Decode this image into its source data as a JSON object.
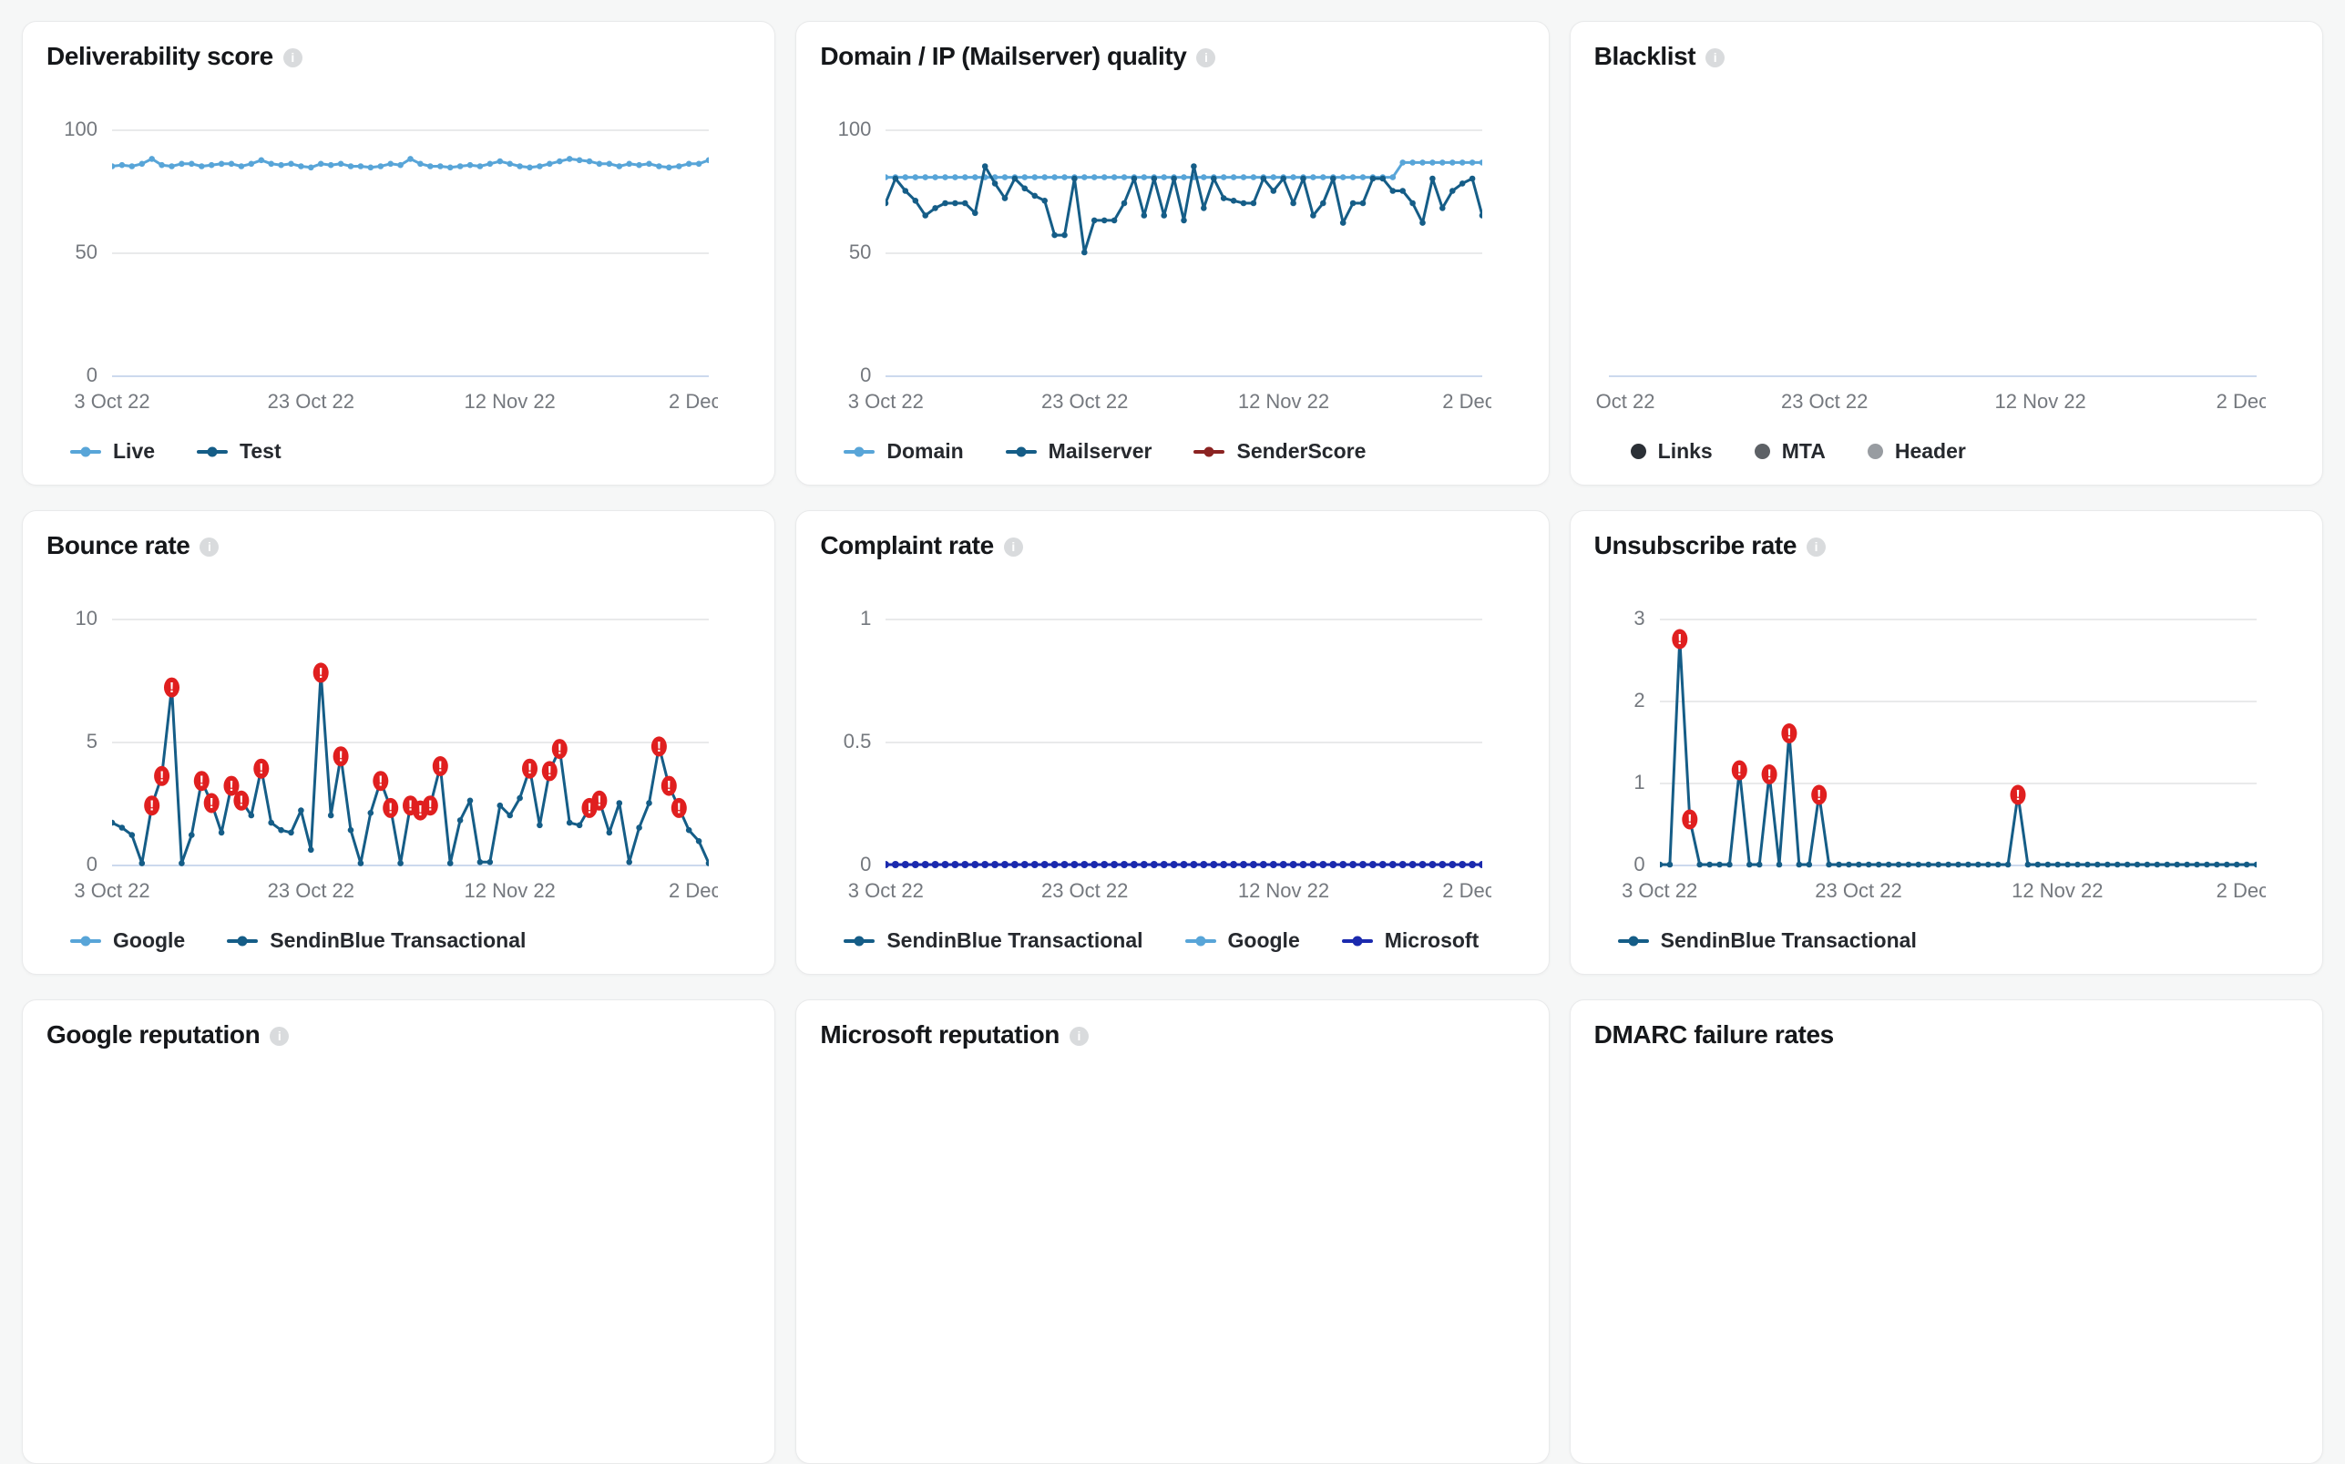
{
  "page": {
    "background": "#f6f7f7"
  },
  "palette": {
    "light_blue": "#58a5d8",
    "dark_blue": "#155d87",
    "navy": "#1b2aae",
    "maroon": "#8b2322",
    "alert_red": "#e01f1f",
    "links_black": "#2b3036",
    "mta_gray": "#5d6166",
    "header_gray": "#989ca1",
    "grid": "#e9eaeb",
    "zero_line": "#ccd9ed",
    "axis_text": "#74787e",
    "title_text": "#15171a"
  },
  "chart_data": [
    {
      "id": "deliverability-score",
      "title": "Deliverability score",
      "info_icon": true,
      "type": "line",
      "ylim": [
        0,
        100
      ],
      "yticks": [
        100,
        50,
        0
      ],
      "xticks": [
        "3 Oct 22",
        "23 Oct 22",
        "12 Nov 22",
        "2 Dec 22"
      ],
      "legend_position": "bottom",
      "series": [
        {
          "name": "Live",
          "color": "#58a5d8",
          "marker": "line-dot",
          "values": [
            85,
            85.5,
            85,
            86,
            88,
            85.5,
            85,
            86,
            86,
            85,
            85.5,
            86,
            86,
            85,
            86,
            87.5,
            86,
            85.5,
            86,
            85,
            84.5,
            86,
            85.5,
            86,
            85,
            85,
            84.5,
            85,
            86,
            85.5,
            88,
            86,
            85,
            85,
            84.5,
            85,
            85.5,
            85,
            86,
            87,
            86,
            85,
            84.5,
            85,
            86,
            87,
            88,
            87.5,
            87,
            86,
            86,
            85,
            86,
            85.5,
            86,
            85,
            84.5,
            85,
            86,
            86,
            87.5
          ],
          "alerts": []
        },
        {
          "name": "Test",
          "color": "#155d87",
          "marker": "line-dot",
          "values": [],
          "alerts": []
        }
      ]
    },
    {
      "id": "domain-ip-mailserver-quality",
      "title": "Domain / IP (Mailserver) quality",
      "info_icon": true,
      "type": "line",
      "ylim": [
        0,
        100
      ],
      "yticks": [
        100,
        50,
        0
      ],
      "xticks": [
        "3 Oct 22",
        "23 Oct 22",
        "12 Nov 22",
        "2 Dec 22"
      ],
      "legend_position": "bottom",
      "series": [
        {
          "name": "Domain",
          "color": "#58a5d8",
          "marker": "line-dot",
          "values": [
            80.5,
            80.5,
            80.5,
            80.5,
            80.5,
            80.5,
            80.5,
            80.5,
            80.5,
            80.5,
            80.5,
            80.5,
            80.5,
            80.5,
            80.5,
            80.5,
            80.5,
            80.5,
            80.5,
            80.5,
            80.5,
            80.5,
            80.5,
            80.5,
            80.5,
            80.5,
            80.5,
            80.5,
            80.5,
            80.5,
            80.5,
            80.5,
            80.5,
            80.5,
            80.5,
            80.5,
            80.5,
            80.5,
            80.5,
            80.5,
            80.5,
            80.5,
            80.5,
            80.5,
            80.5,
            80.5,
            80.5,
            80.5,
            80.5,
            80.5,
            80.5,
            80.5,
            86.5,
            86.5,
            86.5,
            86.5,
            86.5,
            86.5,
            86.5,
            86.5,
            86.5
          ],
          "alerts": []
        },
        {
          "name": "Mailserver",
          "color": "#155d87",
          "marker": "line-dot",
          "values": [
            70,
            80,
            75,
            71,
            65,
            68,
            70,
            70,
            70,
            66,
            85,
            78,
            72,
            80,
            76,
            73,
            71,
            57,
            57,
            80,
            50,
            63,
            63,
            63,
            70,
            80,
            65,
            80,
            65,
            80,
            63,
            85,
            68,
            80,
            72,
            71,
            70,
            70,
            80,
            75,
            80,
            70,
            80,
            65,
            70,
            80,
            62,
            70,
            70,
            80,
            80,
            75,
            75,
            70,
            62,
            80,
            68,
            75,
            78,
            80,
            65
          ],
          "alerts": []
        },
        {
          "name": "SenderScore",
          "color": "#8b2322",
          "marker": "line-dot",
          "values": [],
          "alerts": []
        }
      ]
    },
    {
      "id": "blacklist",
      "title": "Blacklist",
      "info_icon": true,
      "type": "line",
      "ylim": [
        0,
        1
      ],
      "yticks": [],
      "xticks": [
        "Oct 22",
        "23 Oct 22",
        "12 Nov 22",
        "2 Dec 22"
      ],
      "first_label_start": true,
      "legend_marker": "circle",
      "legend_position": "bottom",
      "series": [
        {
          "name": "Links",
          "color": "#2b3036",
          "marker": "circle",
          "values": [],
          "alerts": []
        },
        {
          "name": "MTA",
          "color": "#5d6166",
          "marker": "circle",
          "values": [],
          "alerts": []
        },
        {
          "name": "Header",
          "color": "#989ca1",
          "marker": "circle",
          "values": [],
          "alerts": []
        }
      ]
    },
    {
      "id": "bounce-rate",
      "title": "Bounce rate",
      "info_icon": true,
      "type": "line",
      "ylim": [
        0,
        10
      ],
      "yticks": [
        10,
        5,
        0
      ],
      "xticks": [
        "3 Oct 22",
        "23 Oct 22",
        "12 Nov 22",
        "2 Dec 22"
      ],
      "legend_position": "bottom",
      "series": [
        {
          "name": "Google",
          "color": "#58a5d8",
          "marker": "line-dot",
          "values": [],
          "alerts": []
        },
        {
          "name": "SendinBlue Transactional",
          "color": "#155d87",
          "marker": "line-dot",
          "values": [
            1.7,
            1.5,
            1.2,
            0.05,
            2.4,
            3.6,
            7.2,
            0.05,
            1.2,
            3.4,
            2.5,
            1.3,
            3.2,
            2.6,
            2.0,
            3.9,
            1.7,
            1.4,
            1.3,
            2.2,
            0.6,
            7.8,
            2.0,
            4.4,
            1.4,
            0.05,
            2.1,
            3.4,
            2.3,
            0.05,
            2.4,
            2.2,
            2.4,
            4.0,
            0.05,
            1.8,
            2.6,
            0.1,
            0.1,
            2.4,
            2.0,
            2.7,
            3.9,
            1.6,
            3.8,
            4.7,
            1.7,
            1.6,
            2.3,
            2.6,
            1.3,
            2.5,
            0.1,
            1.5,
            2.5,
            4.8,
            3.2,
            2.3,
            1.4,
            0.95,
            0.05
          ],
          "alerts": [
            4,
            5,
            6,
            9,
            10,
            12,
            13,
            15,
            21,
            23,
            27,
            28,
            30,
            31,
            32,
            33,
            42,
            44,
            45,
            48,
            49,
            55,
            56,
            57
          ]
        }
      ]
    },
    {
      "id": "complaint-rate",
      "title": "Complaint rate",
      "info_icon": true,
      "type": "line",
      "ylim": [
        0,
        1
      ],
      "yticks": [
        1,
        0.5,
        0
      ],
      "xticks": [
        "3 Oct 22",
        "23 Oct 22",
        "12 Nov 22",
        "2 Dec 22"
      ],
      "legend_position": "bottom",
      "series": [
        {
          "name": "SendinBlue Transactional",
          "color": "#155d87",
          "marker": "line-dot",
          "values": [],
          "alerts": []
        },
        {
          "name": "Google",
          "color": "#58a5d8",
          "marker": "line-dot",
          "values": [],
          "alerts": []
        },
        {
          "name": "Microsoft",
          "color": "#1b2aae",
          "marker": "line-dot",
          "marker_r": 4,
          "values": [
            0,
            0,
            0,
            0,
            0,
            0,
            0,
            0,
            0,
            0,
            0,
            0,
            0,
            0,
            0,
            0,
            0,
            0,
            0,
            0,
            0,
            0,
            0,
            0,
            0,
            0,
            0,
            0,
            0,
            0,
            0,
            0,
            0,
            0,
            0,
            0,
            0,
            0,
            0,
            0,
            0,
            0,
            0,
            0,
            0,
            0,
            0,
            0,
            0,
            0,
            0,
            0,
            0,
            0,
            0,
            0,
            0,
            0,
            0,
            0,
            0
          ],
          "alerts": []
        }
      ]
    },
    {
      "id": "unsubscribe-rate",
      "title": "Unsubscribe rate",
      "info_icon": true,
      "type": "line",
      "ylim": [
        0,
        3
      ],
      "yticks": [
        3,
        2,
        1,
        0
      ],
      "xticks": [
        "3 Oct 22",
        "23 Oct 22",
        "12 Nov 22",
        "2 Dec 22"
      ],
      "legend_position": "bottom",
      "series": [
        {
          "name": "SendinBlue Transactional",
          "color": "#155d87",
          "marker": "line-dot",
          "values": [
            0,
            0,
            2.75,
            0.55,
            0,
            0,
            0,
            0,
            1.15,
            0,
            0,
            1.1,
            0,
            1.6,
            0,
            0,
            0.85,
            0,
            0,
            0,
            0,
            0,
            0,
            0,
            0,
            0,
            0,
            0,
            0,
            0,
            0,
            0,
            0,
            0,
            0,
            0,
            0.85,
            0,
            0,
            0,
            0,
            0,
            0,
            0,
            0,
            0,
            0,
            0,
            0,
            0,
            0,
            0,
            0,
            0,
            0,
            0,
            0,
            0,
            0,
            0,
            0
          ],
          "alerts": [
            2,
            3,
            8,
            11,
            13,
            16,
            36
          ]
        }
      ]
    },
    {
      "id": "google-reputation",
      "title": "Google reputation",
      "info_icon": true,
      "partial": true
    },
    {
      "id": "microsoft-reputation",
      "title": "Microsoft reputation",
      "info_icon": true,
      "partial": true
    },
    {
      "id": "dmarc-failure-rates",
      "title": "DMARC failure rates",
      "info_icon": false,
      "partial": true
    }
  ]
}
